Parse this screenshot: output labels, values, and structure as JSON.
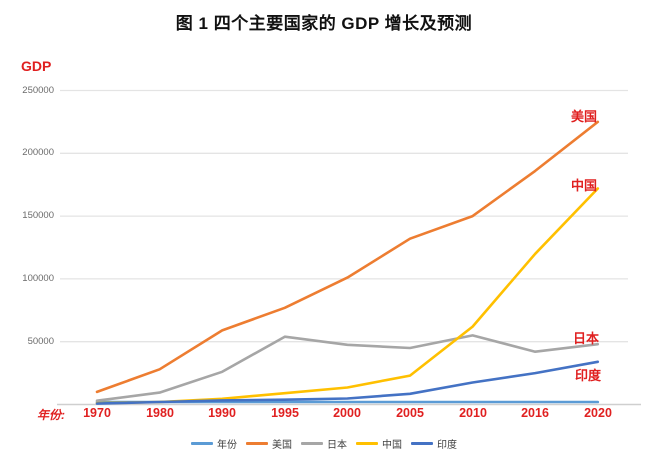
{
  "title": "图 1 四个主要国家的 GDP 增长及预测",
  "y_axis": {
    "title": "GDP",
    "ticks": [
      "250000",
      "200000",
      "150000",
      "100000",
      "50000"
    ]
  },
  "x_axis": {
    "prefix": "年份:",
    "labels": [
      "1970",
      "1980",
      "1990",
      "1995",
      "2000",
      "2005",
      "2010",
      "2016",
      "2020"
    ]
  },
  "annotations": {
    "us": "美国",
    "china": "中国",
    "japan": "日本",
    "india": "印度"
  },
  "legend": [
    {
      "label": "年份",
      "color": "#5b9bd5"
    },
    {
      "label": "美国",
      "color": "#ed7d31"
    },
    {
      "label": "日本",
      "color": "#a6a6a6"
    },
    {
      "label": "中国",
      "color": "#ffc000"
    },
    {
      "label": "印度",
      "color": "#4472c4"
    }
  ],
  "colors": {
    "accent_red": "#e02020",
    "gridline": "#e4e4e4",
    "axis_line": "#cfcfcf",
    "tick_text": "#6b6b6b",
    "legend_text": "#3f3f3f"
  },
  "chart_data": {
    "type": "line",
    "title": "图 1 四个主要国家的 GDP 增长及预测",
    "xlabel": "年份",
    "ylabel": "GDP",
    "categories": [
      "1970",
      "1980",
      "1990",
      "1995",
      "2000",
      "2005",
      "2010",
      "2016",
      "2020"
    ],
    "series": [
      {
        "name": "年份",
        "color": "#5b9bd5",
        "values": [
          1970,
          1980,
          1990,
          1995,
          2000,
          2005,
          2010,
          2016,
          2020
        ]
      },
      {
        "name": "美国",
        "color": "#ed7d31",
        "values": [
          10000,
          28000,
          59000,
          77000,
          101000,
          132000,
          150000,
          186000,
          225000
        ]
      },
      {
        "name": "日本",
        "color": "#a6a6a6",
        "values": [
          3000,
          9500,
          26000,
          54000,
          47500,
          45000,
          55000,
          42000,
          48000
        ]
      },
      {
        "name": "中国",
        "color": "#ffc000",
        "values": [
          1000,
          2000,
          4500,
          9000,
          13500,
          23000,
          62000,
          120000,
          172000
        ]
      },
      {
        "name": "印度",
        "color": "#4472c4",
        "values": [
          700,
          2000,
          3300,
          3800,
          4800,
          8500,
          17500,
          25000,
          34000
        ]
      }
    ],
    "ylim": [
      0,
      250000
    ],
    "y_gridlines": [
      50000,
      100000,
      150000,
      200000,
      250000
    ],
    "grid": true,
    "legend_position": "bottom"
  }
}
